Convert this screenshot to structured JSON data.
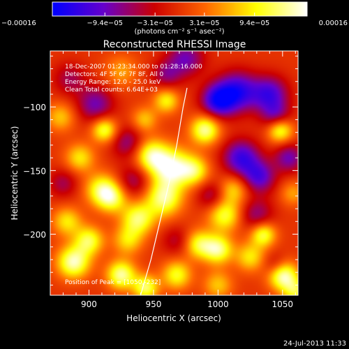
{
  "chart_data": {
    "type": "heatmap",
    "title": "Reconstructed RHESSI Image",
    "xlabel": "Heliocentric X (arcsec)",
    "ylabel": "Heliocentric Y (arcsec)",
    "xlim": [
      870,
      1062
    ],
    "ylim": [
      -248,
      -56
    ],
    "x_ticks": [
      900,
      950,
      1000,
      1050
    ],
    "x_tick_labels": [
      "900",
      "950",
      "1000",
      "1050"
    ],
    "y_ticks": [
      -100,
      -150,
      -200
    ],
    "y_tick_labels": [
      "−100",
      "−150",
      "−200"
    ],
    "colorbar": {
      "min": -0.00016,
      "max": 0.00016,
      "ticks": [
        -0.00016,
        -9.4e-05,
        -3.1e-05,
        3.1e-05,
        9.4e-05,
        0.00016
      ],
      "tick_labels": [
        "−0.00016",
        "−9.4e−05",
        "−3.1e−05",
        "3.1e−05",
        "9.4e−05",
        "0.00016"
      ],
      "unit_label": "(photons cm⁻² s⁻¹ asec⁻²)",
      "colors": [
        "#0000ff",
        "#6600cc",
        "#cc0000",
        "#ff6600",
        "#ffff00",
        "#ffffff"
      ]
    },
    "annotations": [
      "18-Dec-2007 01:23:34.000 to 01:28:16.000",
      "Detectors: 4F 5F 6F 7F 8F, All 0",
      "Energy Range: 12.0 - 25.0 keV",
      "Clean     Total counts: 6.64E+03"
    ],
    "peak_label": "Position of Peak = [1050,-232]",
    "peak": [
      1050,
      -232
    ],
    "limb_curve": [
      [
        940,
        -248
      ],
      [
        948,
        -220
      ],
      [
        955,
        -190
      ],
      [
        962,
        -160
      ],
      [
        968,
        -130
      ],
      [
        973,
        -100
      ],
      [
        976,
        -85
      ]
    ],
    "blobs": [
      {
        "x": 1050,
        "y": -232,
        "v": 1.0,
        "s": 8
      },
      {
        "x": 964,
        "y": -148,
        "v": 0.95,
        "s": 11
      },
      {
        "x": 948,
        "y": -138,
        "v": 0.75,
        "s": 9
      },
      {
        "x": 958,
        "y": -172,
        "v": 0.8,
        "s": 10
      },
      {
        "x": 938,
        "y": -188,
        "v": 0.75,
        "s": 9
      },
      {
        "x": 925,
        "y": -232,
        "v": 0.85,
        "s": 8
      },
      {
        "x": 944,
        "y": -242,
        "v": 0.75,
        "s": 7
      },
      {
        "x": 888,
        "y": -222,
        "v": 0.9,
        "s": 9
      },
      {
        "x": 900,
        "y": -205,
        "v": 0.7,
        "s": 8
      },
      {
        "x": 910,
        "y": -165,
        "v": 0.7,
        "s": 9
      },
      {
        "x": 918,
        "y": -172,
        "v": 0.6,
        "s": 8
      },
      {
        "x": 883,
        "y": -190,
        "v": 0.55,
        "s": 8
      },
      {
        "x": 912,
        "y": -118,
        "v": 0.75,
        "s": 7
      },
      {
        "x": 893,
        "y": -140,
        "v": 0.55,
        "s": 8
      },
      {
        "x": 960,
        "y": -95,
        "v": 0.6,
        "s": 7
      },
      {
        "x": 943,
        "y": -110,
        "v": 0.45,
        "s": 7
      },
      {
        "x": 990,
        "y": -118,
        "v": 0.85,
        "s": 8
      },
      {
        "x": 982,
        "y": -150,
        "v": 0.6,
        "s": 8
      },
      {
        "x": 1005,
        "y": -185,
        "v": 0.7,
        "s": 9
      },
      {
        "x": 1012,
        "y": -165,
        "v": 0.5,
        "s": 8
      },
      {
        "x": 985,
        "y": -208,
        "v": 0.65,
        "s": 8
      },
      {
        "x": 1000,
        "y": -212,
        "v": 0.8,
        "s": 8
      },
      {
        "x": 1035,
        "y": -200,
        "v": 0.75,
        "s": 7
      },
      {
        "x": 1048,
        "y": -118,
        "v": 0.8,
        "s": 7
      },
      {
        "x": 1025,
        "y": -218,
        "v": 0.55,
        "s": 8
      },
      {
        "x": 968,
        "y": -232,
        "v": 0.65,
        "s": 8
      },
      {
        "x": 1000,
        "y": -240,
        "v": 0.45,
        "s": 8
      },
      {
        "x": 878,
        "y": -108,
        "v": 0.45,
        "s": 8
      },
      {
        "x": 930,
        "y": -205,
        "v": 0.5,
        "s": 8
      },
      {
        "x": 925,
        "y": -72,
        "v": 0.35,
        "s": 9
      },
      {
        "x": 1060,
        "y": -245,
        "v": 0.6,
        "s": 7
      },
      {
        "x": 1058,
        "y": -168,
        "v": 0.35,
        "s": 7
      },
      {
        "x": 975,
        "y": -62,
        "v": -0.55,
        "s": 10
      },
      {
        "x": 1000,
        "y": -95,
        "v": -0.85,
        "s": 9
      },
      {
        "x": 1015,
        "y": -88,
        "v": -0.8,
        "s": 11
      },
      {
        "x": 1040,
        "y": -90,
        "v": -0.7,
        "s": 10
      },
      {
        "x": 1018,
        "y": -140,
        "v": -0.75,
        "s": 10
      },
      {
        "x": 1032,
        "y": -155,
        "v": -0.65,
        "s": 9
      },
      {
        "x": 1055,
        "y": -140,
        "v": -0.55,
        "s": 8
      },
      {
        "x": 1045,
        "y": -108,
        "v": -0.5,
        "s": 8
      },
      {
        "x": 905,
        "y": -98,
        "v": -0.55,
        "s": 10
      },
      {
        "x": 930,
        "y": -128,
        "v": -0.45,
        "s": 9
      },
      {
        "x": 935,
        "y": -158,
        "v": -0.4,
        "s": 9
      },
      {
        "x": 1030,
        "y": -185,
        "v": -0.45,
        "s": 9
      },
      {
        "x": 995,
        "y": -170,
        "v": -0.4,
        "s": 8
      },
      {
        "x": 968,
        "y": -205,
        "v": -0.3,
        "s": 8
      },
      {
        "x": 1045,
        "y": -225,
        "v": -0.4,
        "s": 7
      },
      {
        "x": 880,
        "y": -160,
        "v": -0.35,
        "s": 8
      },
      {
        "x": 885,
        "y": -78,
        "v": -0.35,
        "s": 9
      },
      {
        "x": 960,
        "y": -75,
        "v": -0.4,
        "s": 8
      }
    ]
  },
  "footer": {
    "timestamp": "24-Jul-2013 11:33"
  }
}
